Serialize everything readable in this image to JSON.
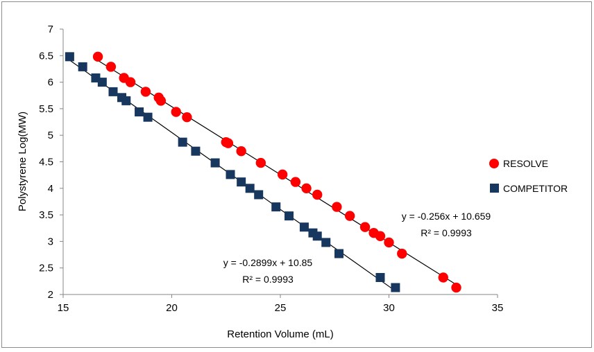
{
  "chart_data": {
    "type": "scatter",
    "title": "",
    "xlabel": "Retention Volume (mL)",
    "ylabel": "Polystyrene Log(MW)",
    "xlim": [
      15,
      35
    ],
    "ylim": [
      2,
      7
    ],
    "xticks": [
      15,
      20,
      25,
      30,
      35
    ],
    "yticks": [
      "2",
      "2.5",
      "3",
      "3.5",
      "4",
      "4.5",
      "5",
      "5.5",
      "6",
      "6.5",
      "7"
    ],
    "grid": false,
    "legend_position": "right",
    "series": [
      {
        "name": "RESOLVE",
        "marker": "circle",
        "color": "#ff0000",
        "points": [
          [
            16.6,
            6.48
          ],
          [
            17.2,
            6.29
          ],
          [
            17.8,
            6.08
          ],
          [
            18.1,
            6.0
          ],
          [
            18.8,
            5.82
          ],
          [
            19.4,
            5.71
          ],
          [
            19.5,
            5.65
          ],
          [
            20.2,
            5.44
          ],
          [
            20.7,
            5.34
          ],
          [
            22.5,
            4.87
          ],
          [
            22.6,
            4.85
          ],
          [
            23.2,
            4.7
          ],
          [
            24.1,
            4.48
          ],
          [
            25.1,
            4.26
          ],
          [
            25.7,
            4.12
          ],
          [
            26.2,
            4.0
          ],
          [
            26.7,
            3.88
          ],
          [
            27.6,
            3.65
          ],
          [
            28.2,
            3.48
          ],
          [
            28.9,
            3.27
          ],
          [
            29.3,
            3.16
          ],
          [
            29.6,
            3.1
          ],
          [
            30.0,
            2.98
          ],
          [
            30.6,
            2.77
          ],
          [
            32.5,
            2.32
          ],
          [
            33.1,
            2.13
          ]
        ],
        "trendline": {
          "slope": -0.256,
          "intercept": 10.659,
          "equation": "y = -0.256x + 10.659",
          "r2": "R² = 0.9993"
        }
      },
      {
        "name": "COMPETITOR",
        "marker": "square",
        "color": "#17375e",
        "points": [
          [
            15.3,
            6.48
          ],
          [
            15.9,
            6.29
          ],
          [
            16.5,
            6.08
          ],
          [
            16.8,
            6.0
          ],
          [
            17.3,
            5.82
          ],
          [
            17.7,
            5.71
          ],
          [
            17.9,
            5.65
          ],
          [
            18.5,
            5.44
          ],
          [
            18.9,
            5.34
          ],
          [
            20.5,
            4.87
          ],
          [
            21.1,
            4.7
          ],
          [
            22.0,
            4.48
          ],
          [
            22.7,
            4.26
          ],
          [
            23.2,
            4.12
          ],
          [
            23.6,
            4.0
          ],
          [
            24.0,
            3.88
          ],
          [
            24.8,
            3.65
          ],
          [
            25.4,
            3.48
          ],
          [
            26.1,
            3.27
          ],
          [
            26.5,
            3.16
          ],
          [
            26.7,
            3.1
          ],
          [
            27.1,
            2.98
          ],
          [
            27.7,
            2.77
          ],
          [
            29.6,
            2.32
          ],
          [
            30.3,
            2.13
          ]
        ],
        "trendline": {
          "slope": -0.2899,
          "intercept": 10.85,
          "equation": "y = -0.2899x + 10.85",
          "r2": "R² = 0.9993"
        }
      }
    ]
  }
}
